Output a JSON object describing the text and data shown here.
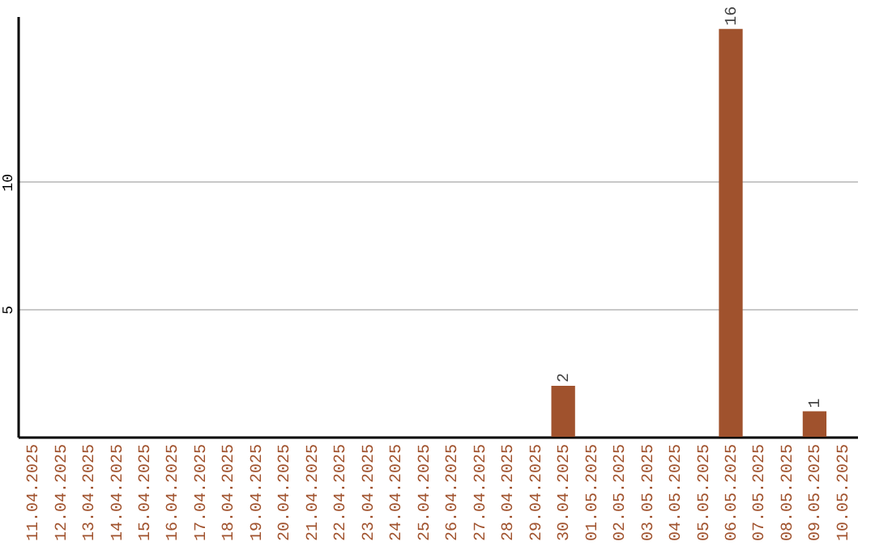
{
  "chart_data": {
    "type": "bar",
    "categories": [
      "11.04.2025",
      "12.04.2025",
      "13.04.2025",
      "14.04.2025",
      "15.04.2025",
      "16.04.2025",
      "17.04.2025",
      "18.04.2025",
      "19.04.2025",
      "20.04.2025",
      "21.04.2025",
      "22.04.2025",
      "23.04.2025",
      "24.04.2025",
      "25.04.2025",
      "26.04.2025",
      "27.04.2025",
      "28.04.2025",
      "29.04.2025",
      "30.04.2025",
      "01.05.2025",
      "02.05.2025",
      "03.05.2025",
      "04.05.2025",
      "05.05.2025",
      "06.05.2025",
      "07.05.2025",
      "08.05.2025",
      "09.05.2025",
      "10.05.2025"
    ],
    "values": [
      0,
      0,
      0,
      0,
      0,
      0,
      0,
      0,
      0,
      0,
      0,
      0,
      0,
      0,
      0,
      0,
      0,
      0,
      0,
      2,
      0,
      0,
      0,
      0,
      0,
      16,
      0,
      0,
      1,
      0
    ],
    "value_labels": [
      null,
      null,
      null,
      null,
      null,
      null,
      null,
      null,
      null,
      null,
      null,
      null,
      null,
      null,
      null,
      null,
      null,
      null,
      null,
      "2",
      null,
      null,
      null,
      null,
      null,
      "16",
      null,
      null,
      "1",
      null
    ],
    "color": "#a0522d",
    "ylim": [
      0,
      16.5
    ],
    "yticks": [
      5,
      10
    ],
    "grid": "y"
  }
}
